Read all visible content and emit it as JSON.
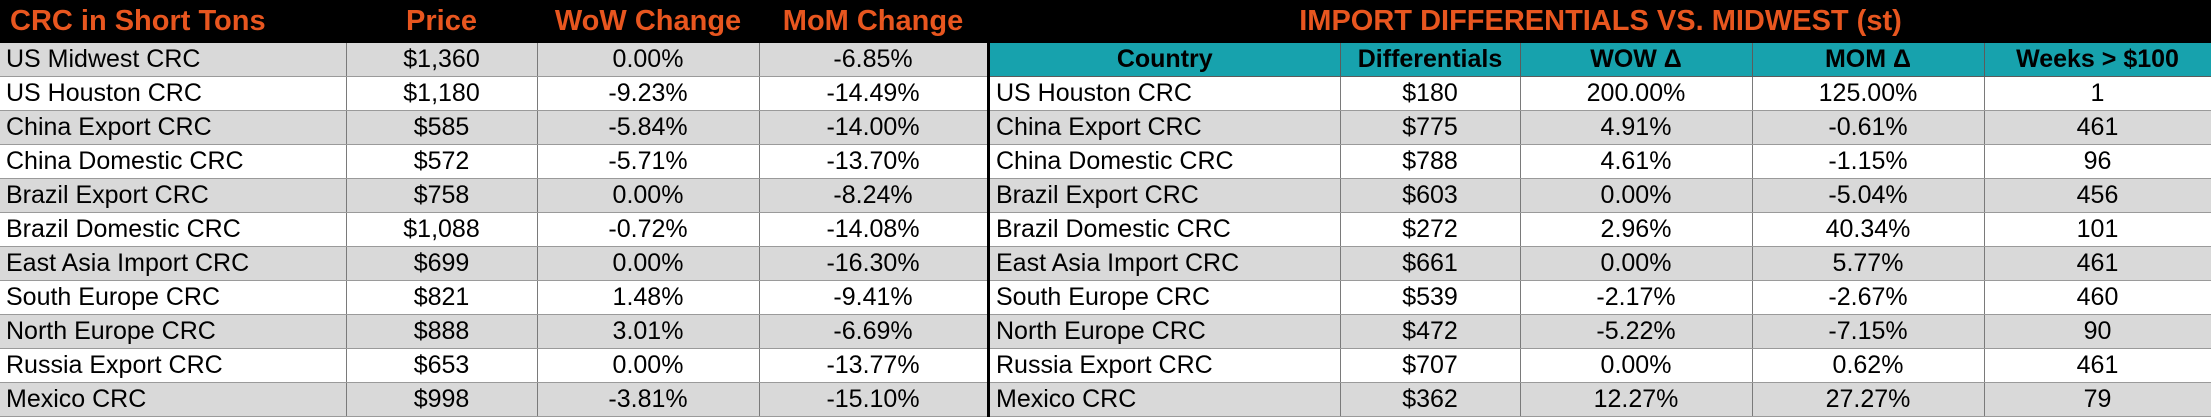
{
  "left": {
    "headers": [
      "CRC in Short Tons",
      "Price",
      "WoW Change",
      "MoM Change"
    ],
    "rows": [
      [
        "US Midwest CRC",
        "$1,360",
        "0.00%",
        "-6.85%"
      ],
      [
        "US Houston CRC",
        "$1,180",
        "-9.23%",
        "-14.49%"
      ],
      [
        "China Export CRC",
        "$585",
        "-5.84%",
        "-14.00%"
      ],
      [
        "China Domestic CRC",
        "$572",
        "-5.71%",
        "-13.70%"
      ],
      [
        "Brazil Export CRC",
        "$758",
        "0.00%",
        "-8.24%"
      ],
      [
        "Brazil Domestic CRC",
        "$1,088",
        "-0.72%",
        "-14.08%"
      ],
      [
        "East Asia Import CRC",
        "$699",
        "0.00%",
        "-16.30%"
      ],
      [
        "South Europe CRC",
        "$821",
        "1.48%",
        "-9.41%"
      ],
      [
        "North Europe CRC",
        "$888",
        "3.01%",
        "-6.69%"
      ],
      [
        "Russia Export CRC",
        "$653",
        "0.00%",
        "-13.77%"
      ],
      [
        "Mexico CRC",
        "$998",
        "-3.81%",
        "-15.10%"
      ]
    ]
  },
  "right": {
    "title": "IMPORT DIFFERENTIALS VS. MIDWEST (st)",
    "headers": [
      "Country",
      "Differentials",
      "WOW Δ",
      "MOM Δ",
      "Weeks > $100"
    ],
    "rows": [
      [
        "US Houston CRC",
        "$180",
        "200.00%",
        "125.00%",
        "1"
      ],
      [
        "China Export CRC",
        "$775",
        "4.91%",
        "-0.61%",
        "461"
      ],
      [
        "China Domestic CRC",
        "$788",
        "4.61%",
        "-1.15%",
        "96"
      ],
      [
        "Brazil Export CRC",
        "$603",
        "0.00%",
        "-5.04%",
        "456"
      ],
      [
        "Brazil Domestic CRC",
        "$272",
        "2.96%",
        "40.34%",
        "101"
      ],
      [
        "East Asia Import CRC",
        "$661",
        "0.00%",
        "5.77%",
        "461"
      ],
      [
        "South Europe CRC",
        "$539",
        "-2.17%",
        "-2.67%",
        "460"
      ],
      [
        "North Europe CRC",
        "$472",
        "-5.22%",
        "-7.15%",
        "90"
      ],
      [
        "Russia Export CRC",
        "$707",
        "0.00%",
        "0.62%",
        "461"
      ],
      [
        "Mexico CRC",
        "$362",
        "12.27%",
        "27.27%",
        "79"
      ]
    ]
  },
  "colors": {
    "header_bg": "#000000",
    "header_text": "#e8561f",
    "subheader_bg": "#17a2ad",
    "shade_row": "#d9d9d9"
  }
}
